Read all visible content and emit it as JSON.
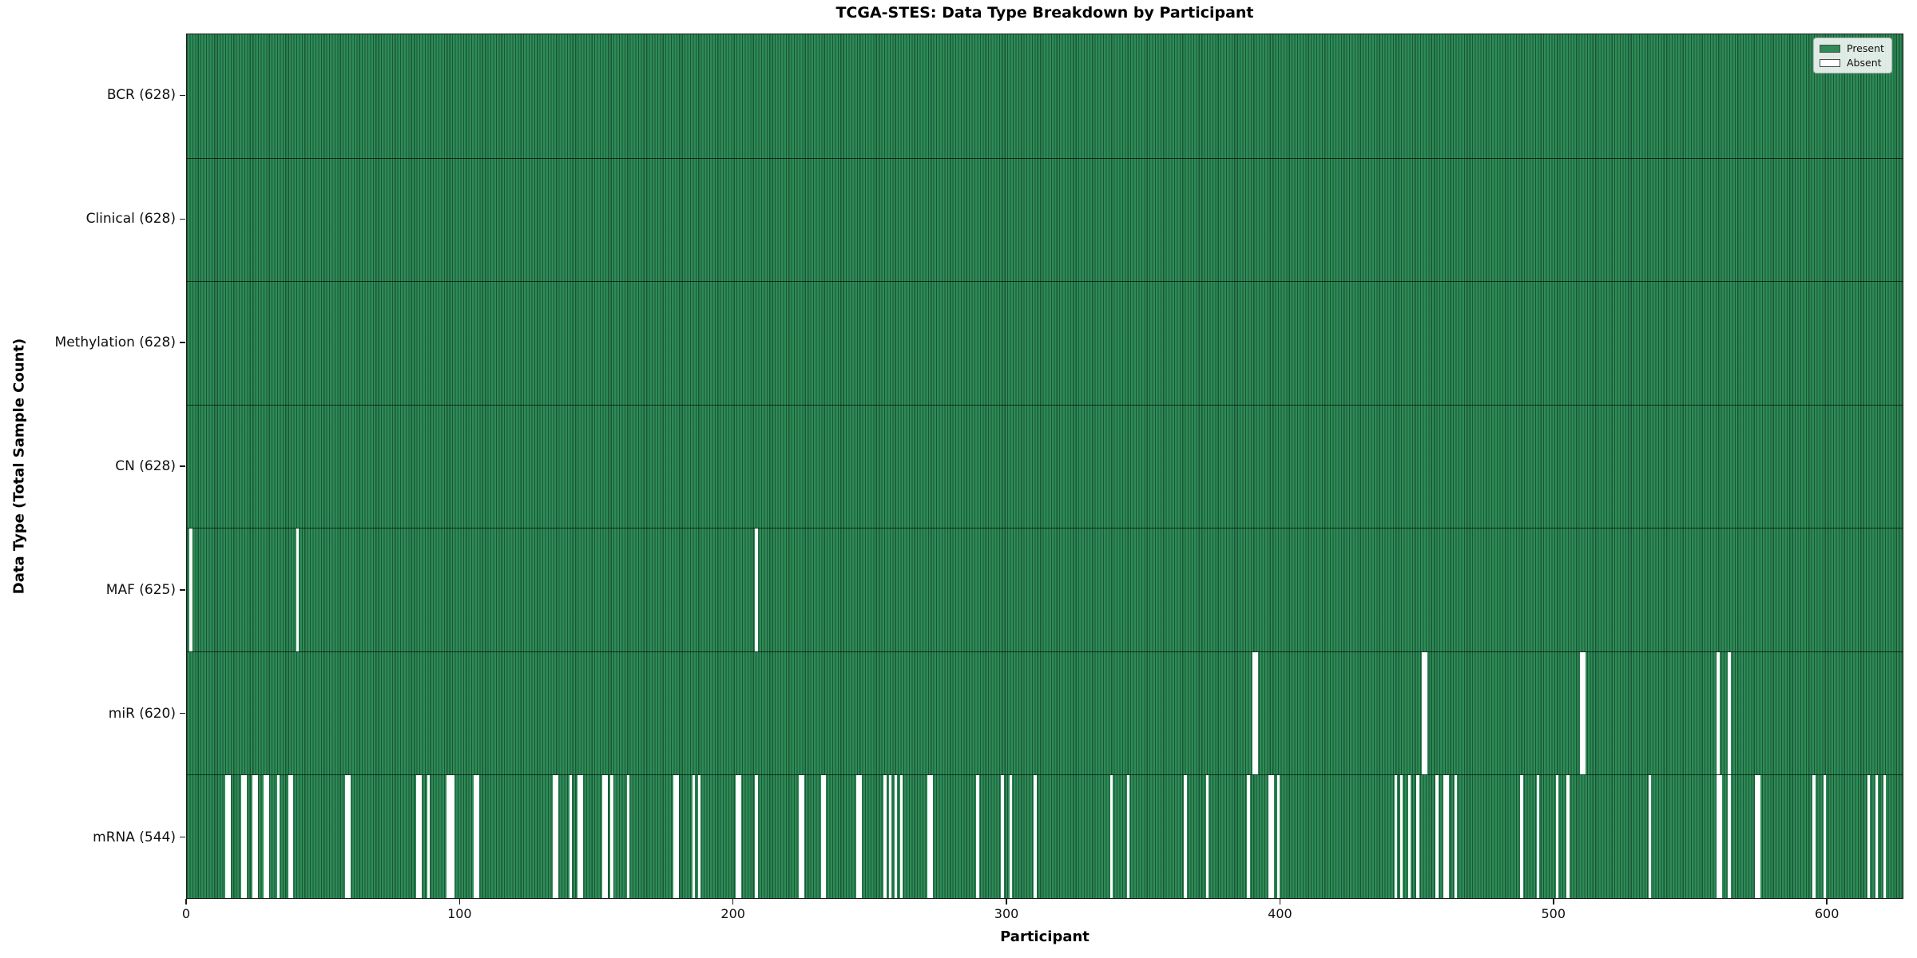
{
  "chart_data": {
    "type": "heatmap",
    "title": "TCGA-STES: Data Type Breakdown by Participant",
    "xlabel": "Participant",
    "ylabel": "Data Type (Total Sample Count)",
    "n_participants": 628,
    "x_ticks": [
      0,
      100,
      200,
      300,
      400,
      500,
      600
    ],
    "legend_position": "upper right",
    "grid": false,
    "colors": {
      "present": "#2e8b57",
      "absent": "#ffffff",
      "bar_edge": "rgba(8,42,26,0.55)"
    },
    "legend": [
      {
        "label": "Present",
        "color": "#2e8b57"
      },
      {
        "label": "Absent",
        "color": "#ffffff"
      }
    ],
    "rows": [
      {
        "name": "BCR",
        "label": "BCR (628)",
        "count": 628,
        "absent": []
      },
      {
        "name": "Clinical",
        "label": "Clinical (628)",
        "count": 628,
        "absent": []
      },
      {
        "name": "Methylation",
        "label": "Methylation (628)",
        "count": 628,
        "absent": []
      },
      {
        "name": "CN",
        "label": "CN (628)",
        "count": 628,
        "absent": []
      },
      {
        "name": "MAF",
        "label": "MAF (625)",
        "count": 625,
        "absent": [
          1,
          40,
          208
        ]
      },
      {
        "name": "miR",
        "label": "miR (620)",
        "count": 620,
        "absent": [
          390,
          391,
          452,
          453,
          510,
          511,
          560,
          564
        ]
      },
      {
        "name": "mRNA",
        "label": "mRNA (544)",
        "count": 544,
        "absent": [
          14,
          15,
          20,
          21,
          24,
          25,
          28,
          29,
          33,
          37,
          38,
          58,
          59,
          84,
          85,
          88,
          95,
          96,
          97,
          105,
          106,
          134,
          135,
          140,
          143,
          144,
          152,
          153,
          155,
          161,
          178,
          179,
          185,
          187,
          201,
          202,
          208,
          224,
          225,
          232,
          233,
          245,
          246,
          255,
          257,
          259,
          261,
          271,
          272,
          289,
          298,
          301,
          310,
          338,
          344,
          365,
          373,
          388,
          396,
          397,
          399,
          442,
          444,
          447,
          450,
          457,
          460,
          461,
          464,
          488,
          494,
          501,
          505,
          535,
          560,
          561,
          564,
          574,
          575,
          595,
          599,
          615,
          618,
          621
        ]
      }
    ]
  }
}
